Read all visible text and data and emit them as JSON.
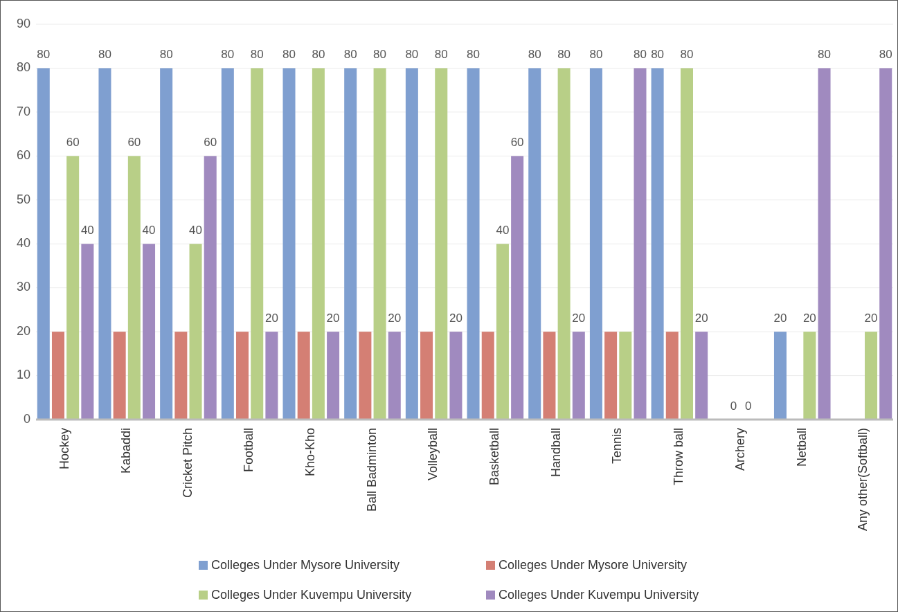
{
  "chart_data": {
    "type": "bar",
    "categories": [
      "Hockey",
      "Kabaddi",
      "Cricket Pitch",
      "Football",
      "Kho-Kho",
      "Ball Badminton",
      "Volleyball",
      "Basketball",
      "Handball",
      "Tennis",
      "Throw  ball",
      "Archery",
      "Netball",
      "Any other(Softball)"
    ],
    "series": [
      {
        "name": "Colleges Under Mysore University",
        "color": "#7f9fd0",
        "values": [
          80,
          80,
          80,
          80,
          80,
          80,
          80,
          80,
          80,
          80,
          80,
          0,
          20,
          0
        ],
        "value_labels": [
          "80",
          "80",
          "80",
          "80",
          "80",
          "80",
          "80",
          "80",
          "80",
          "80",
          "80",
          null,
          "20",
          null
        ]
      },
      {
        "name": "Colleges Under Mysore University",
        "color": "#d47f74",
        "values": [
          20,
          20,
          20,
          20,
          20,
          20,
          20,
          20,
          20,
          20,
          20,
          0,
          0,
          0
        ],
        "value_labels": [
          null,
          null,
          null,
          null,
          null,
          null,
          null,
          null,
          null,
          null,
          null,
          "0",
          null,
          null
        ]
      },
      {
        "name": "Colleges Under Kuvempu University",
        "color": "#b8cf87",
        "values": [
          60,
          60,
          40,
          80,
          80,
          80,
          80,
          40,
          80,
          20,
          80,
          0,
          20,
          20
        ],
        "value_labels": [
          "60",
          "60",
          "40",
          "80",
          "80",
          "80",
          "80",
          "40",
          "80",
          null,
          "80",
          "0",
          "20",
          "20"
        ]
      },
      {
        "name": "Colleges Under Kuvempu University",
        "color": "#a08abf",
        "values": [
          40,
          40,
          60,
          20,
          20,
          20,
          20,
          60,
          20,
          80,
          20,
          0,
          80,
          80
        ],
        "value_labels": [
          "40",
          "40",
          "60",
          "20",
          "20",
          "20",
          "20",
          "60",
          "20",
          "80",
          "20",
          null,
          "80",
          "80"
        ]
      }
    ],
    "ylim": [
      0,
      90
    ],
    "yticks": [
      0,
      10,
      20,
      30,
      40,
      50,
      60,
      70,
      80,
      90
    ],
    "grid": "y",
    "legend": "bottom"
  }
}
